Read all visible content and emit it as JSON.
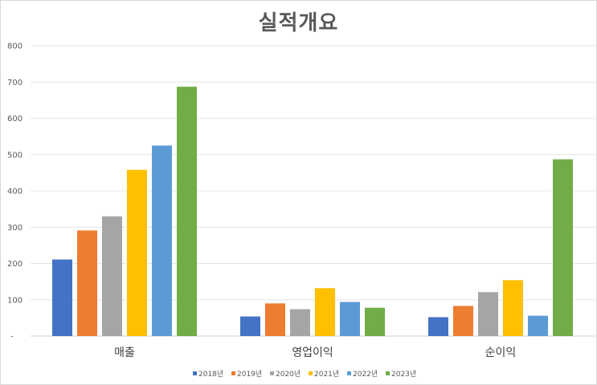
{
  "chart_data": {
    "type": "bar",
    "title": "실적개요",
    "categories": [
      "매출",
      "영업이익",
      "순이익"
    ],
    "series": [
      {
        "name": "2018년",
        "color": "#4472c4",
        "values": [
          211,
          54,
          52
        ]
      },
      {
        "name": "2019년",
        "color": "#ed7d31",
        "values": [
          291,
          90,
          83
        ]
      },
      {
        "name": "2020년",
        "color": "#a5a5a5",
        "values": [
          330,
          74,
          121
        ]
      },
      {
        "name": "2021년",
        "color": "#ffc000",
        "values": [
          458,
          132,
          154
        ]
      },
      {
        "name": "2022년",
        "color": "#5b9bd5",
        "values": [
          525,
          94,
          56
        ]
      },
      {
        "name": "2023년",
        "color": "#70ad47",
        "values": [
          687,
          78,
          487
        ]
      }
    ],
    "y_ticks": [
      "-",
      "100",
      "200",
      "300",
      "400",
      "500",
      "600",
      "700",
      "800"
    ],
    "ylim": [
      0,
      800
    ],
    "xlabel": "",
    "ylabel": "",
    "grid": true,
    "legend_position": "bottom"
  }
}
